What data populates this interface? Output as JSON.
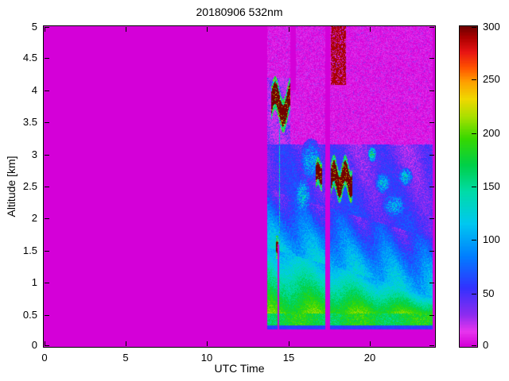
{
  "chart_data": {
    "type": "heatmap",
    "title": "20180906 532nm",
    "xlabel": "UTC Time",
    "ylabel": "Altitude [km]",
    "xlim": [
      0,
      24
    ],
    "ylim": [
      0,
      5
    ],
    "xticks": [
      0,
      5,
      10,
      15,
      20
    ],
    "yticks": [
      0,
      0.5,
      1,
      1.5,
      2,
      2.5,
      3,
      3.5,
      4,
      4.5,
      5
    ],
    "colorbar": {
      "min": 0,
      "max": 300,
      "ticks": [
        0,
        50,
        100,
        150,
        200,
        250,
        300
      ]
    },
    "colormap": [
      [
        0,
        "#D400D8"
      ],
      [
        14,
        "#E836EE"
      ],
      [
        30,
        "#8C2CF0"
      ],
      [
        55,
        "#3232FF"
      ],
      [
        85,
        "#0080FF"
      ],
      [
        115,
        "#00C8F0"
      ],
      [
        145,
        "#00DCA8"
      ],
      [
        170,
        "#00D048"
      ],
      [
        195,
        "#38D800"
      ],
      [
        215,
        "#A8E000"
      ],
      [
        232,
        "#F0D800"
      ],
      [
        248,
        "#FFA000"
      ],
      [
        262,
        "#FF5000"
      ],
      [
        276,
        "#E81414"
      ],
      [
        290,
        "#AA0000"
      ],
      [
        300,
        "#6E0000"
      ]
    ],
    "background_value": 0,
    "data_window": {
      "t_start": 13.72,
      "t_end": 23.85
    },
    "gaps": [
      {
        "t": [
          17.25,
          17.58
        ],
        "z": [
          0,
          5
        ]
      },
      {
        "t": [
          14.36,
          14.42
        ],
        "z": [
          0,
          1.6
        ]
      },
      {
        "t": [
          15.12,
          15.48
        ],
        "z": [
          4.0,
          5
        ]
      }
    ],
    "profile": {
      "blind_zone_top": 0.27,
      "surface_line": {
        "z": [
          0.27,
          0.33
        ],
        "value": 50
      },
      "bright_band": {
        "z": [
          0.33,
          0.52
        ],
        "value": 165
      },
      "green_top_start": 1.55,
      "green_top_slope": 0.075,
      "green_top_min": 0.78,
      "green_value": 195,
      "green_fade": 85,
      "cyan_depth": 0.9,
      "cyan_value": 115,
      "cyan_fade": 65,
      "blue_top": 3.15,
      "blue_value": 55,
      "upper_blue_top": 4.2,
      "upper_blue_value": 38,
      "noise_value": 27
    },
    "clouds": [
      {
        "t": [
          13.95,
          15.12
        ],
        "zc": 3.78,
        "amp": 0.18,
        "freq": 3.2,
        "half": 0.17,
        "value": 296
      },
      {
        "t": [
          16.7,
          17.06
        ],
        "zc": 2.7,
        "amp": 0.05,
        "freq": 7.0,
        "half": 0.13,
        "value": 296
      },
      {
        "t": [
          17.62,
          18.92
        ],
        "zc": 2.62,
        "amp": 0.13,
        "freq": 4.5,
        "half": 0.16,
        "value": 296
      },
      {
        "t": [
          14.24,
          14.37
        ],
        "zc": 1.55,
        "amp": 0.0,
        "freq": 0,
        "half": 0.09,
        "value": 296
      }
    ],
    "top_noise_patch": {
      "t": [
        17.62,
        18.55
      ],
      "z": [
        4.08,
        5.0
      ],
      "value": 288
    },
    "streaks": [
      {
        "t": [
          14.42,
          14.48
        ],
        "z": [
          1.6,
          3.4
        ],
        "value": 118
      }
    ],
    "patches": [
      {
        "t": 20.15,
        "z": 3.0,
        "rt": 0.25,
        "rz": 0.12,
        "value": 150
      },
      {
        "t": 20.8,
        "z": 2.55,
        "rt": 0.5,
        "rz": 0.18,
        "value": 105
      },
      {
        "t": 22.2,
        "z": 2.65,
        "rt": 0.45,
        "rz": 0.15,
        "value": 112
      },
      {
        "t": 21.5,
        "z": 2.2,
        "rt": 0.8,
        "rz": 0.2,
        "value": 95
      },
      {
        "t": 16.4,
        "z": 2.9,
        "rt": 0.7,
        "rz": 0.35,
        "value": 100
      },
      {
        "t": 15.9,
        "z": 2.35,
        "rt": 0.5,
        "rz": 0.3,
        "value": 112
      }
    ]
  }
}
